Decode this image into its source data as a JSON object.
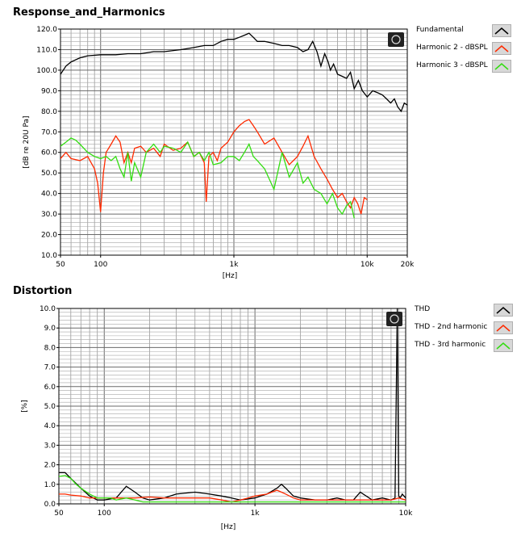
{
  "chart_data": [
    {
      "type": "line",
      "title": "Response_and_Harmonics",
      "xlabel": "[Hz]",
      "ylabel": "[dB re 20U Pa]",
      "xscale": "log",
      "xlim": [
        50,
        20000
      ],
      "ylim": [
        10,
        120
      ],
      "x_ticks": [
        50,
        100,
        1000,
        10000,
        20000
      ],
      "x_tick_labels": [
        "50",
        "100",
        "1k",
        "10k",
        "20k"
      ],
      "y_ticks": [
        10,
        20,
        30,
        40,
        50,
        60,
        70,
        80,
        90,
        100,
        110,
        120
      ],
      "y_tick_labels": [
        "10.0",
        "20.0",
        "30.0",
        "40.0",
        "50.0",
        "60.0",
        "70.0",
        "80.0",
        "90.0",
        "100.0",
        "110.0",
        "120.0"
      ],
      "grid": true,
      "legend_position": "right",
      "series": [
        {
          "name": "Fundamental",
          "color": "#000000",
          "x": [
            50,
            55,
            60,
            70,
            80,
            100,
            130,
            160,
            200,
            250,
            300,
            400,
            500,
            600,
            700,
            800,
            900,
            1000,
            1100,
            1200,
            1300,
            1400,
            1500,
            1700,
            2000,
            2300,
            2600,
            3000,
            3300,
            3600,
            3900,
            4200,
            4500,
            4800,
            5100,
            5300,
            5600,
            6000,
            6500,
            7000,
            7500,
            8000,
            8600,
            9200,
            10000,
            11000,
            12000,
            13000,
            14000,
            15000,
            16000,
            17000,
            18000,
            19000,
            20000
          ],
          "values": [
            98,
            102,
            104,
            106,
            107,
            107.5,
            107.5,
            108,
            108,
            109,
            109,
            110,
            111,
            112,
            112,
            114,
            115,
            115,
            116,
            117,
            118,
            116,
            114,
            114,
            113,
            112,
            112,
            111,
            109,
            110,
            114,
            109,
            102,
            108,
            104,
            100,
            103,
            98,
            97,
            96,
            99,
            91,
            95,
            90,
            87,
            90,
            89,
            88,
            86,
            84,
            86,
            82,
            80,
            84,
            83
          ]
        },
        {
          "name": "Harmonic 2 - dBSPL",
          "color": "#ff2a00",
          "x": [
            50,
            55,
            60,
            70,
            80,
            90,
            95,
            100,
            105,
            110,
            120,
            130,
            140,
            150,
            160,
            170,
            180,
            200,
            220,
            250,
            280,
            300,
            350,
            400,
            450,
            500,
            550,
            600,
            620,
            650,
            700,
            750,
            800,
            900,
            1000,
            1100,
            1200,
            1300,
            1400,
            1500,
            1700,
            2000,
            2300,
            2600,
            3000,
            3300,
            3600,
            4000,
            4500,
            5000,
            5500,
            6000,
            6500,
            7000,
            7500,
            8000,
            8500,
            9000,
            9500,
            10000
          ],
          "values": [
            57,
            60,
            57,
            56,
            58,
            52,
            45,
            31,
            50,
            60,
            64,
            68,
            65,
            55,
            60,
            55,
            62,
            63,
            60,
            62,
            58,
            64,
            61,
            62,
            65,
            58,
            60,
            55,
            36,
            58,
            60,
            56,
            62,
            65,
            70,
            73,
            75,
            76,
            73,
            70,
            64,
            67,
            60,
            54,
            58,
            63,
            68,
            58,
            52,
            47,
            42,
            38,
            40,
            36,
            33,
            38,
            35,
            30,
            38,
            37
          ]
        },
        {
          "name": "Harmonic 3 - dBSPL",
          "color": "#33dd11",
          "x": [
            50,
            55,
            60,
            65,
            70,
            80,
            90,
            100,
            110,
            120,
            130,
            140,
            150,
            160,
            170,
            180,
            200,
            220,
            250,
            280,
            300,
            350,
            400,
            450,
            500,
            550,
            600,
            650,
            700,
            800,
            900,
            1000,
            1100,
            1200,
            1300,
            1400,
            1500,
            1700,
            2000,
            2300,
            2600,
            3000,
            3300,
            3600,
            4000,
            4500,
            5000,
            5500,
            6000,
            6500,
            7000,
            7500,
            8000
          ],
          "values": [
            63,
            65,
            67,
            66,
            64,
            60,
            58,
            57,
            58,
            56,
            58,
            52,
            48,
            60,
            46,
            55,
            48,
            60,
            64,
            60,
            63,
            62,
            60,
            65,
            58,
            60,
            56,
            60,
            54,
            55,
            58,
            58,
            56,
            60,
            64,
            58,
            56,
            52,
            42,
            60,
            48,
            55,
            45,
            48,
            42,
            40,
            35,
            40,
            33,
            30,
            34,
            36,
            28
          ]
        }
      ]
    },
    {
      "type": "line",
      "title": "Distortion",
      "xlabel": "[Hz]",
      "ylabel": "[%]",
      "xscale": "log",
      "xlim": [
        50,
        10000
      ],
      "ylim": [
        0,
        10
      ],
      "x_ticks": [
        50,
        100,
        1000,
        10000
      ],
      "x_tick_labels": [
        "50",
        "100",
        "1k",
        "10k"
      ],
      "y_ticks": [
        0,
        1,
        2,
        3,
        4,
        5,
        6,
        7,
        8,
        9,
        10
      ],
      "y_tick_labels": [
        "0.0",
        "1.0",
        "2.0",
        "3.0",
        "4.0",
        "5.0",
        "6.0",
        "7.0",
        "8.0",
        "9.0",
        "10.0"
      ],
      "grid": true,
      "legend_position": "right",
      "series": [
        {
          "name": "THD",
          "color": "#000000",
          "x": [
            50,
            55,
            60,
            70,
            80,
            90,
            100,
            120,
            140,
            160,
            180,
            200,
            250,
            300,
            400,
            500,
            600,
            700,
            800,
            1000,
            1200,
            1400,
            1500,
            1600,
            1800,
            2000,
            2500,
            3000,
            3500,
            4000,
            4500,
            5000,
            6000,
            7000,
            8000,
            8500,
            8800,
            9000,
            9200,
            9500,
            10000
          ],
          "values": [
            1.6,
            1.6,
            1.3,
            0.8,
            0.4,
            0.2,
            0.2,
            0.3,
            0.9,
            0.6,
            0.3,
            0.2,
            0.3,
            0.5,
            0.6,
            0.5,
            0.4,
            0.3,
            0.2,
            0.3,
            0.5,
            0.8,
            1.0,
            0.8,
            0.4,
            0.3,
            0.2,
            0.2,
            0.3,
            0.2,
            0.2,
            0.6,
            0.2,
            0.3,
            0.2,
            0.3,
            10,
            0.4,
            0.3,
            0.5,
            0.3
          ]
        },
        {
          "name": "THD - 2nd harmonic",
          "color": "#ff2a00",
          "x": [
            50,
            55,
            60,
            70,
            80,
            90,
            100,
            120,
            140,
            160,
            200,
            250,
            300,
            400,
            500,
            600,
            700,
            800,
            900,
            1000,
            1200,
            1400,
            1500,
            1600,
            1800,
            2000,
            2500,
            3000,
            4000,
            5000,
            6000,
            7000,
            8000,
            9000,
            10000
          ],
          "values": [
            0.5,
            0.5,
            0.45,
            0.4,
            0.3,
            0.3,
            0.3,
            0.3,
            0.3,
            0.3,
            0.35,
            0.3,
            0.3,
            0.3,
            0.3,
            0.2,
            0.1,
            0.2,
            0.3,
            0.4,
            0.5,
            0.7,
            0.6,
            0.5,
            0.3,
            0.2,
            0.2,
            0.2,
            0.2,
            0.2,
            0.2,
            0.2,
            0.2,
            0.3,
            0.2
          ]
        },
        {
          "name": "THD - 3rd harmonic",
          "color": "#33dd11",
          "x": [
            50,
            55,
            60,
            65,
            70,
            80,
            90,
            100,
            110,
            120,
            140,
            160,
            180,
            200,
            250,
            300,
            400,
            500,
            600,
            800,
            1000,
            1200,
            1500,
            2000,
            3000,
            4000,
            5000,
            6000,
            7000,
            8000,
            9000,
            10000
          ],
          "values": [
            1.4,
            1.45,
            1.3,
            1.0,
            0.8,
            0.5,
            0.3,
            0.3,
            0.3,
            0.2,
            0.3,
            0.2,
            0.1,
            0.1,
            0.1,
            0.1,
            0.1,
            0.1,
            0.1,
            0.1,
            0.1,
            0.1,
            0.1,
            0.1,
            0.1,
            0.1,
            0.1,
            0.1,
            0.1,
            0.1,
            0.1,
            0.1
          ]
        }
      ]
    }
  ]
}
